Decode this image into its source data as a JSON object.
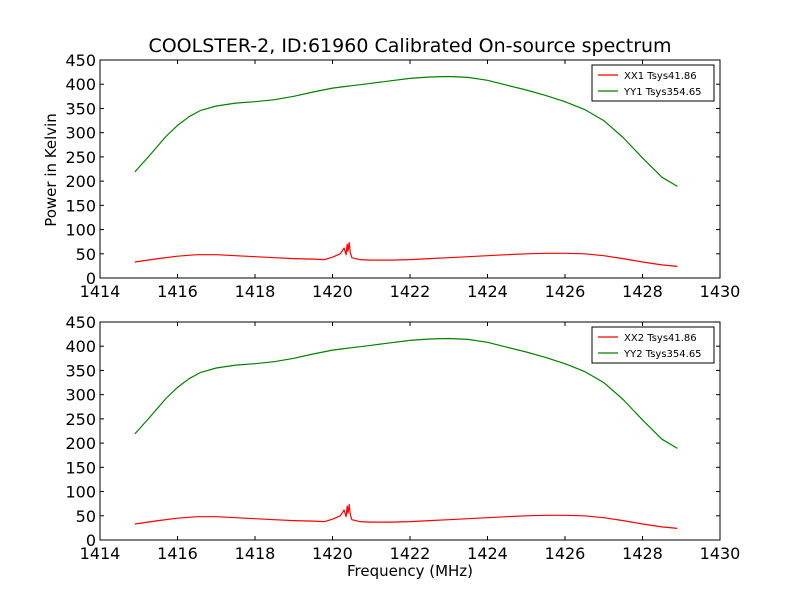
{
  "chart_data": [
    {
      "type": "line",
      "title": "COOLSTER-2, ID:61960 Calibrated On-source spectrum",
      "xlabel": "",
      "ylabel": "Power in Kelvin",
      "xlim": [
        1414,
        1430
      ],
      "ylim": [
        0,
        450
      ],
      "xticks": [
        "1414",
        "1416",
        "1418",
        "1420",
        "1422",
        "1424",
        "1426",
        "1428",
        "1430"
      ],
      "yticks": [
        "0",
        "50",
        "100",
        "150",
        "200",
        "250",
        "300",
        "350",
        "400",
        "450"
      ],
      "legend_position": "top-right",
      "series": [
        {
          "name": "XX1 Tsys41.86",
          "color": "#ff0000",
          "x": [
            1414.9,
            1415.5,
            1416.0,
            1416.5,
            1417.0,
            1417.5,
            1418.0,
            1418.5,
            1419.0,
            1419.5,
            1419.8,
            1420.0,
            1420.2,
            1420.3,
            1420.35,
            1420.38,
            1420.4,
            1420.43,
            1420.46,
            1420.5,
            1420.7,
            1421.0,
            1421.5,
            1422.0,
            1422.5,
            1423.0,
            1423.5,
            1424.0,
            1424.5,
            1425.0,
            1425.5,
            1426.0,
            1426.5,
            1427.0,
            1427.5,
            1428.0,
            1428.5,
            1428.9
          ],
          "values": [
            33,
            40,
            45,
            48,
            48,
            46,
            44,
            42,
            40,
            39,
            38,
            43,
            50,
            62,
            48,
            70,
            55,
            73,
            52,
            42,
            38,
            37,
            37,
            38,
            40,
            42,
            44,
            46,
            48,
            50,
            51,
            51,
            50,
            46,
            40,
            33,
            27,
            24
          ]
        },
        {
          "name": "YY1 Tsys354.65",
          "color": "#008000",
          "x": [
            1414.9,
            1415.3,
            1415.7,
            1416.0,
            1416.3,
            1416.6,
            1417.0,
            1417.5,
            1418.0,
            1418.5,
            1419.0,
            1419.5,
            1420.0,
            1420.3,
            1420.5,
            1421.0,
            1421.5,
            1422.0,
            1422.5,
            1423.0,
            1423.5,
            1424.0,
            1424.5,
            1425.0,
            1425.5,
            1426.0,
            1426.5,
            1427.0,
            1427.5,
            1428.0,
            1428.5,
            1428.9
          ],
          "values": [
            219,
            255,
            292,
            315,
            333,
            346,
            355,
            361,
            364,
            368,
            375,
            384,
            392,
            395,
            397,
            402,
            407,
            412,
            415,
            416,
            414,
            408,
            398,
            388,
            377,
            364,
            348,
            325,
            290,
            248,
            208,
            189
          ]
        }
      ]
    },
    {
      "type": "line",
      "title": "",
      "xlabel": "Frequency (MHz)",
      "ylabel": "",
      "xlim": [
        1414,
        1430
      ],
      "ylim": [
        0,
        450
      ],
      "xticks": [
        "1414",
        "1416",
        "1418",
        "1420",
        "1422",
        "1424",
        "1426",
        "1428",
        "1430"
      ],
      "yticks": [
        "0",
        "50",
        "100",
        "150",
        "200",
        "250",
        "300",
        "350",
        "400",
        "450"
      ],
      "legend_position": "top-right",
      "series": [
        {
          "name": "XX2 Tsys41.86",
          "color": "#ff0000",
          "x": [
            1414.9,
            1415.5,
            1416.0,
            1416.5,
            1417.0,
            1417.5,
            1418.0,
            1418.5,
            1419.0,
            1419.5,
            1419.8,
            1420.0,
            1420.2,
            1420.3,
            1420.35,
            1420.38,
            1420.4,
            1420.43,
            1420.46,
            1420.5,
            1420.7,
            1421.0,
            1421.5,
            1422.0,
            1422.5,
            1423.0,
            1423.5,
            1424.0,
            1424.5,
            1425.0,
            1425.5,
            1426.0,
            1426.5,
            1427.0,
            1427.5,
            1428.0,
            1428.5,
            1428.9
          ],
          "values": [
            33,
            40,
            45,
            48,
            48,
            46,
            44,
            42,
            40,
            39,
            38,
            43,
            50,
            62,
            48,
            70,
            55,
            73,
            52,
            42,
            38,
            37,
            37,
            38,
            40,
            42,
            44,
            46,
            48,
            50,
            51,
            51,
            50,
            46,
            40,
            33,
            27,
            24
          ]
        },
        {
          "name": "YY2 Tsys354.65",
          "color": "#008000",
          "x": [
            1414.9,
            1415.3,
            1415.7,
            1416.0,
            1416.3,
            1416.6,
            1417.0,
            1417.5,
            1418.0,
            1418.5,
            1419.0,
            1419.5,
            1420.0,
            1420.3,
            1420.5,
            1421.0,
            1421.5,
            1422.0,
            1422.5,
            1423.0,
            1423.5,
            1424.0,
            1424.5,
            1425.0,
            1425.5,
            1426.0,
            1426.5,
            1427.0,
            1427.5,
            1428.0,
            1428.5,
            1428.9
          ],
          "values": [
            219,
            255,
            292,
            315,
            333,
            346,
            355,
            361,
            364,
            368,
            375,
            384,
            392,
            395,
            397,
            402,
            407,
            412,
            415,
            416,
            414,
            408,
            398,
            388,
            377,
            364,
            348,
            325,
            290,
            248,
            208,
            189
          ]
        }
      ]
    }
  ]
}
